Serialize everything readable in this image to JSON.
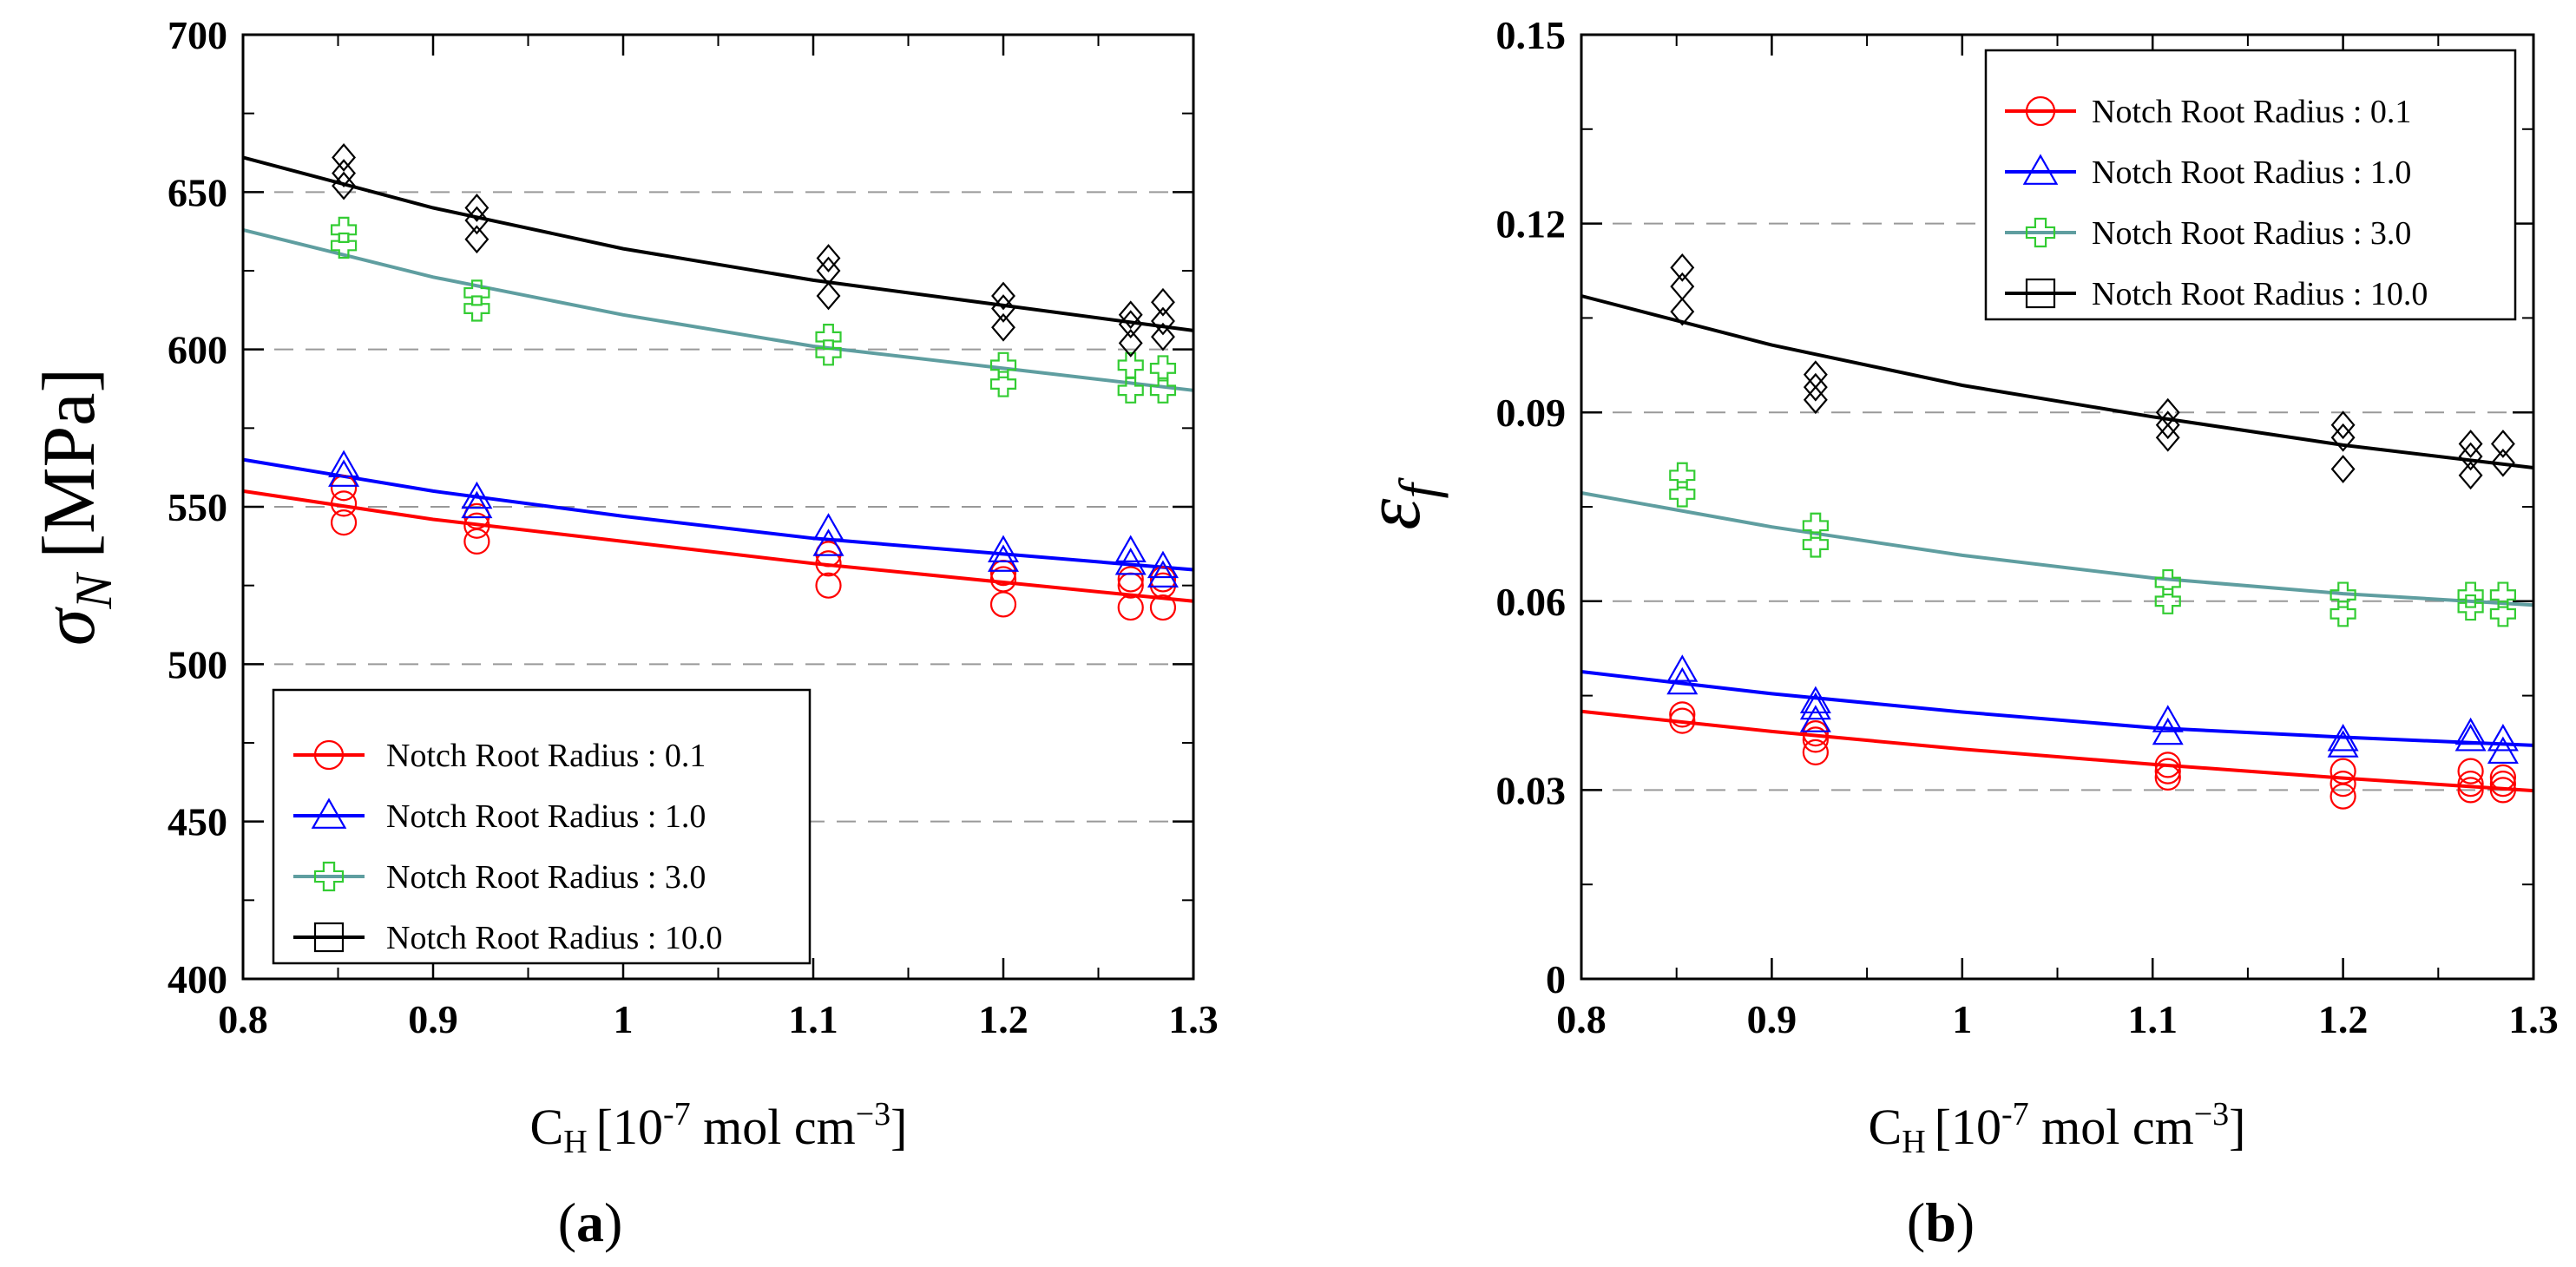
{
  "panels": [
    {
      "id": "a",
      "panel_label_open": "(",
      "panel_label_letter": "a",
      "panel_label_close": ")",
      "ylabel_symbol": "σ",
      "ylabel_sub": "N",
      "ylabel_unit": "[MPa]",
      "xlabel_main": "C",
      "xlabel_sub": "H",
      "xlabel_bracket": "[10",
      "xlabel_exp": "-7",
      "xlabel_units": " mol cm",
      "xlabel_exp2": "−3",
      "xlabel_close": "]",
      "legend_position": "bottom-left",
      "chart_data": {
        "type": "scatter",
        "title": "",
        "xlim": [
          0.8,
          1.3
        ],
        "ylim": [
          400,
          700
        ],
        "xticks": [
          "0.8",
          "0.9",
          "1",
          "1.1",
          "1.2",
          "1.3"
        ],
        "yticks": [
          "400",
          "450",
          "500",
          "550",
          "600",
          "650",
          "700"
        ],
        "series": [
          {
            "name": "Notch Root Radius : 0.1",
            "marker": "circle",
            "color": "#ff0000",
            "points": [
              [
                0.853,
                545
              ],
              [
                0.853,
                551
              ],
              [
                0.853,
                556
              ],
              [
                0.923,
                539
              ],
              [
                0.923,
                544
              ],
              [
                0.923,
                547
              ],
              [
                1.108,
                525
              ],
              [
                1.108,
                532
              ],
              [
                1.108,
                535
              ],
              [
                1.2,
                519
              ],
              [
                1.2,
                527
              ],
              [
                1.2,
                529
              ],
              [
                1.267,
                518
              ],
              [
                1.267,
                525
              ],
              [
                1.267,
                527
              ],
              [
                1.284,
                518
              ],
              [
                1.284,
                525
              ],
              [
                1.284,
                527
              ]
            ],
            "fit": [
              [
                0.8,
                555
              ],
              [
                0.9,
                546
              ],
              [
                1.0,
                539
              ],
              [
                1.1,
                532
              ],
              [
                1.2,
                526
              ],
              [
                1.3,
                520
              ]
            ]
          },
          {
            "name": "Notch Root Radius : 1.0",
            "marker": "triangle",
            "color": "#0000ff",
            "points": [
              [
                0.853,
                560
              ],
              [
                0.853,
                563
              ],
              [
                0.923,
                550
              ],
              [
                0.923,
                553
              ],
              [
                1.108,
                538
              ],
              [
                1.108,
                543
              ],
              [
                1.2,
                533
              ],
              [
                1.2,
                536
              ],
              [
                1.267,
                532
              ],
              [
                1.267,
                536
              ],
              [
                1.284,
                528
              ],
              [
                1.284,
                531
              ]
            ],
            "fit": [
              [
                0.8,
                565
              ],
              [
                0.9,
                555
              ],
              [
                1.0,
                547
              ],
              [
                1.1,
                540
              ],
              [
                1.2,
                535
              ],
              [
                1.3,
                530
              ]
            ]
          },
          {
            "name": "Notch Root Radius : 3.0",
            "marker": "cross",
            "color": "#33cc33",
            "fit_color": "#5f9ea0",
            "points": [
              [
                0.853,
                633
              ],
              [
                0.853,
                638
              ],
              [
                0.923,
                613
              ],
              [
                0.923,
                618
              ],
              [
                1.108,
                599
              ],
              [
                1.108,
                604
              ],
              [
                1.2,
                589
              ],
              [
                1.2,
                595
              ],
              [
                1.267,
                587
              ],
              [
                1.267,
                595
              ],
              [
                1.284,
                587
              ],
              [
                1.284,
                594
              ]
            ],
            "fit": [
              [
                0.8,
                638
              ],
              [
                0.9,
                623
              ],
              [
                1.0,
                611
              ],
              [
                1.1,
                601
              ],
              [
                1.2,
                594
              ],
              [
                1.3,
                587
              ]
            ]
          },
          {
            "name": "Notch Root Radius : 10.0",
            "marker": "diamond",
            "color": "#000000",
            "legend_marker": "square",
            "points": [
              [
                0.853,
                652
              ],
              [
                0.853,
                656
              ],
              [
                0.853,
                661
              ],
              [
                0.923,
                635
              ],
              [
                0.923,
                641
              ],
              [
                0.923,
                645
              ],
              [
                1.108,
                617
              ],
              [
                1.108,
                625
              ],
              [
                1.108,
                629
              ],
              [
                1.2,
                607
              ],
              [
                1.2,
                613
              ],
              [
                1.2,
                617
              ],
              [
                1.267,
                602
              ],
              [
                1.267,
                608
              ],
              [
                1.267,
                611
              ],
              [
                1.284,
                604
              ],
              [
                1.284,
                609
              ],
              [
                1.284,
                615
              ]
            ],
            "fit": [
              [
                0.8,
                661
              ],
              [
                0.9,
                645
              ],
              [
                1.0,
                632
              ],
              [
                1.1,
                622
              ],
              [
                1.2,
                614
              ],
              [
                1.3,
                606
              ]
            ]
          }
        ]
      }
    },
    {
      "id": "b",
      "panel_label_open": "(",
      "panel_label_letter": "b",
      "panel_label_close": ")",
      "ylabel_symbol": "ε",
      "ylabel_sub": "f",
      "ylabel_unit": "",
      "xlabel_main": "C",
      "xlabel_sub": "H",
      "xlabel_bracket": "[10",
      "xlabel_exp": "-7",
      "xlabel_units": " mol cm",
      "xlabel_exp2": "−3",
      "xlabel_close": "]",
      "legend_position": "top-right",
      "chart_data": {
        "type": "scatter",
        "title": "",
        "xlim": [
          0.8,
          1.3
        ],
        "ylim": [
          0,
          0.15
        ],
        "xticks": [
          "0.8",
          "0.9",
          "1",
          "1.1",
          "1.2",
          "1.3"
        ],
        "yticks": [
          "0",
          "0.03",
          "0.06",
          "0.09",
          "0.12",
          "0.15"
        ],
        "series": [
          {
            "name": "Notch Root Radius : 0.1",
            "marker": "circle",
            "color": "#ff0000",
            "points": [
              [
                0.853,
                0.041
              ],
              [
                0.853,
                0.042
              ],
              [
                0.923,
                0.036
              ],
              [
                0.923,
                0.038
              ],
              [
                0.923,
                0.039
              ],
              [
                1.108,
                0.032
              ],
              [
                1.108,
                0.033
              ],
              [
                1.108,
                0.034
              ],
              [
                1.2,
                0.029
              ],
              [
                1.2,
                0.031
              ],
              [
                1.2,
                0.033
              ],
              [
                1.267,
                0.03
              ],
              [
                1.267,
                0.031
              ],
              [
                1.267,
                0.033
              ],
              [
                1.284,
                0.03
              ],
              [
                1.284,
                0.031
              ],
              [
                1.284,
                0.032
              ]
            ],
            "fit": [
              [
                0.8,
                0.0425
              ],
              [
                0.9,
                0.0393
              ],
              [
                1.0,
                0.0365
              ],
              [
                1.1,
                0.0341
              ],
              [
                1.2,
                0.0319
              ],
              [
                1.3,
                0.0299
              ]
            ]
          },
          {
            "name": "Notch Root Radius : 1.0",
            "marker": "triangle",
            "color": "#0000ff",
            "points": [
              [
                0.853,
                0.047
              ],
              [
                0.853,
                0.049
              ],
              [
                0.923,
                0.041
              ],
              [
                0.923,
                0.043
              ],
              [
                0.923,
                0.044
              ],
              [
                1.108,
                0.039
              ],
              [
                1.108,
                0.041
              ],
              [
                1.2,
                0.037
              ],
              [
                1.2,
                0.038
              ],
              [
                1.267,
                0.038
              ],
              [
                1.267,
                0.039
              ],
              [
                1.284,
                0.036
              ],
              [
                1.284,
                0.038
              ]
            ],
            "fit": [
              [
                0.8,
                0.0488
              ],
              [
                0.9,
                0.0453
              ],
              [
                1.0,
                0.0424
              ],
              [
                1.1,
                0.0399
              ],
              [
                1.2,
                0.0384
              ],
              [
                1.3,
                0.0371
              ]
            ]
          },
          {
            "name": "Notch Root Radius : 3.0",
            "marker": "cross",
            "color": "#33cc33",
            "fit_color": "#5f9ea0",
            "points": [
              [
                0.853,
                0.077
              ],
              [
                0.853,
                0.08
              ],
              [
                0.923,
                0.069
              ],
              [
                0.923,
                0.072
              ],
              [
                1.108,
                0.06
              ],
              [
                1.108,
                0.063
              ],
              [
                1.2,
                0.058
              ],
              [
                1.2,
                0.061
              ],
              [
                1.267,
                0.059
              ],
              [
                1.267,
                0.061
              ],
              [
                1.284,
                0.058
              ],
              [
                1.284,
                0.061
              ]
            ],
            "fit": [
              [
                0.8,
                0.0772
              ],
              [
                0.9,
                0.0718
              ],
              [
                1.0,
                0.0673
              ],
              [
                1.1,
                0.0637
              ],
              [
                1.2,
                0.0612
              ],
              [
                1.3,
                0.0594
              ]
            ]
          },
          {
            "name": "Notch Root Radius : 10.0",
            "marker": "diamond",
            "color": "#000000",
            "legend_marker": "square",
            "points": [
              [
                0.853,
                0.106
              ],
              [
                0.853,
                0.11
              ],
              [
                0.853,
                0.113
              ],
              [
                0.923,
                0.092
              ],
              [
                0.923,
                0.094
              ],
              [
                0.923,
                0.096
              ],
              [
                1.108,
                0.086
              ],
              [
                1.108,
                0.088
              ],
              [
                1.108,
                0.09
              ],
              [
                1.2,
                0.081
              ],
              [
                1.2,
                0.086
              ],
              [
                1.2,
                0.088
              ],
              [
                1.267,
                0.08
              ],
              [
                1.267,
                0.083
              ],
              [
                1.267,
                0.085
              ],
              [
                1.284,
                0.082
              ],
              [
                1.284,
                0.085
              ]
            ],
            "fit": [
              [
                0.8,
                0.1085
              ],
              [
                0.9,
                0.1007
              ],
              [
                1.0,
                0.0943
              ],
              [
                1.1,
                0.0893
              ],
              [
                1.2,
                0.0848
              ],
              [
                1.3,
                0.0812
              ]
            ]
          }
        ]
      }
    }
  ]
}
